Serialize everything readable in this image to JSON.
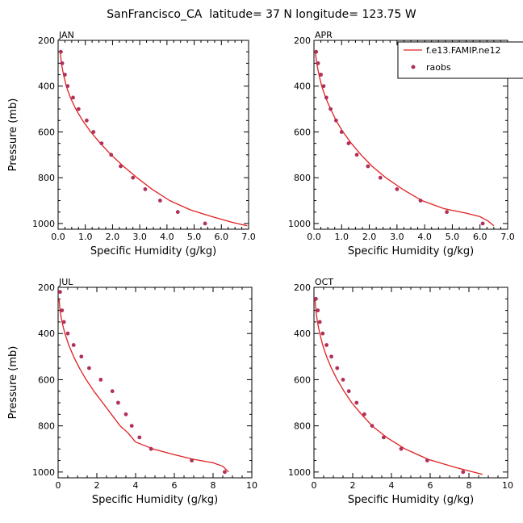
{
  "figure_title": "SanFrancisco_CA  latitude= 37 N longitude= 123.75 W",
  "legend": {
    "model_label": "f.e13.FAMIP.ne12",
    "obs_label": "raobs"
  },
  "colors": {
    "model": "#e02020",
    "obs": "#b0305a",
    "axes": "#000000"
  },
  "chart_data": [
    {
      "type": "line",
      "panel": "JAN",
      "xlabel": "Specific Humidity (g/kg)",
      "ylabel": "Pressure (mb)",
      "xlim": [
        0,
        7
      ],
      "xticks": [
        0.0,
        1.0,
        2.0,
        3.0,
        4.0,
        5.0,
        6.0,
        7.0
      ],
      "xtick_labels": [
        "0.0",
        "1.0",
        "2.0",
        "3.0",
        "4.0",
        "5.0",
        "6.0",
        "7.0"
      ],
      "ylim": [
        1025,
        200
      ],
      "yticks": [
        200,
        400,
        600,
        800,
        1000
      ],
      "series": [
        {
          "name": "f.e13.FAMIP.ne12",
          "style": "line",
          "x": [
            0.08,
            0.12,
            0.2,
            0.3,
            0.45,
            0.65,
            0.9,
            1.2,
            1.55,
            1.95,
            2.4,
            2.9,
            3.45,
            4.1,
            4.85,
            5.65,
            6.4,
            6.95
          ],
          "y": [
            250,
            300,
            350,
            400,
            450,
            500,
            550,
            600,
            650,
            700,
            750,
            800,
            850,
            900,
            940,
            970,
            995,
            1010
          ]
        },
        {
          "name": "raobs",
          "style": "markers",
          "x": [
            0.1,
            0.15,
            0.25,
            0.35,
            0.55,
            0.75,
            1.05,
            1.3,
            1.6,
            1.95,
            2.3,
            2.75,
            3.2,
            3.75,
            4.4,
            5.4
          ],
          "y": [
            250,
            300,
            350,
            400,
            450,
            500,
            550,
            600,
            650,
            700,
            750,
            800,
            850,
            900,
            950,
            1000
          ]
        }
      ]
    },
    {
      "type": "line",
      "panel": "APR",
      "xlabel": "Specific Humidity (g/kg)",
      "ylabel": "",
      "xlim": [
        0,
        7
      ],
      "xticks": [
        0.0,
        1.0,
        2.0,
        3.0,
        4.0,
        5.0,
        6.0,
        7.0
      ],
      "xtick_labels": [
        "0.0",
        "1.0",
        "2.0",
        "3.0",
        "4.0",
        "5.0",
        "6.0",
        "7.0"
      ],
      "ylim": [
        1025,
        200
      ],
      "yticks": [
        200,
        400,
        600,
        800,
        1000
      ],
      "series": [
        {
          "name": "f.e13.FAMIP.ne12",
          "style": "line",
          "x": [
            0.05,
            0.1,
            0.18,
            0.28,
            0.42,
            0.6,
            0.8,
            1.05,
            1.35,
            1.7,
            2.1,
            2.6,
            3.2,
            3.9,
            4.7,
            5.5,
            6.0,
            6.3,
            6.5
          ],
          "y": [
            250,
            300,
            350,
            400,
            450,
            500,
            550,
            600,
            650,
            700,
            750,
            800,
            850,
            900,
            935,
            955,
            970,
            990,
            1010
          ]
        },
        {
          "name": "raobs",
          "style": "markers",
          "x": [
            0.08,
            0.15,
            0.25,
            0.35,
            0.45,
            0.6,
            0.8,
            1.0,
            1.25,
            1.55,
            1.95,
            2.4,
            3.0,
            3.85,
            4.8,
            6.1
          ],
          "y": [
            250,
            300,
            350,
            400,
            450,
            500,
            550,
            600,
            650,
            700,
            750,
            800,
            850,
            900,
            950,
            1000
          ]
        }
      ]
    },
    {
      "type": "line",
      "panel": "JUL",
      "xlabel": "Specific Humidity (g/kg)",
      "ylabel": "Pressure (mb)",
      "xlim": [
        0,
        10
      ],
      "xticks": [
        0,
        2,
        4,
        6,
        8,
        10
      ],
      "xtick_labels": [
        "0",
        "2",
        "4",
        "6",
        "8",
        "10"
      ],
      "ylim": [
        1025,
        200
      ],
      "yticks": [
        200,
        400,
        600,
        800,
        1000
      ],
      "series": [
        {
          "name": "f.e13.FAMIP.ne12",
          "style": "line",
          "x": [
            0.05,
            0.1,
            0.2,
            0.35,
            0.55,
            0.8,
            1.1,
            1.45,
            1.85,
            2.3,
            2.75,
            3.2,
            3.6,
            4.0,
            4.9,
            6.0,
            7.0,
            8.0,
            8.5,
            8.8
          ],
          "y": [
            250,
            300,
            350,
            400,
            450,
            500,
            550,
            600,
            650,
            700,
            750,
            800,
            830,
            870,
            900,
            925,
            945,
            960,
            975,
            1000
          ]
        },
        {
          "name": "raobs",
          "style": "markers",
          "x": [
            0.1,
            0.2,
            0.3,
            0.5,
            0.8,
            1.2,
            1.6,
            2.2,
            2.8,
            3.1,
            3.5,
            3.8,
            4.2,
            4.8,
            6.9,
            8.6
          ],
          "y": [
            220,
            300,
            350,
            400,
            450,
            500,
            550,
            600,
            650,
            700,
            750,
            800,
            850,
            900,
            950,
            1000
          ]
        }
      ]
    },
    {
      "type": "line",
      "panel": "OCT",
      "xlabel": "Specific Humidity (g/kg)",
      "ylabel": "",
      "xlim": [
        0,
        10
      ],
      "xticks": [
        0,
        2,
        4,
        6,
        8,
        10
      ],
      "xtick_labels": [
        "0",
        "2",
        "4",
        "6",
        "8",
        "10"
      ],
      "ylim": [
        1025,
        200
      ],
      "yticks": [
        200,
        400,
        600,
        800,
        1000
      ],
      "series": [
        {
          "name": "f.e13.FAMIP.ne12",
          "style": "line",
          "x": [
            0.05,
            0.1,
            0.18,
            0.3,
            0.45,
            0.65,
            0.9,
            1.2,
            1.55,
            1.95,
            2.45,
            3.0,
            3.75,
            4.7,
            5.9,
            7.3,
            8.7
          ],
          "y": [
            250,
            300,
            350,
            400,
            450,
            500,
            550,
            600,
            650,
            700,
            750,
            800,
            850,
            900,
            945,
            980,
            1010
          ]
        },
        {
          "name": "raobs",
          "style": "markers",
          "x": [
            0.1,
            0.2,
            0.3,
            0.45,
            0.65,
            0.9,
            1.2,
            1.5,
            1.8,
            2.2,
            2.6,
            3.0,
            3.6,
            4.5,
            5.85,
            7.7
          ],
          "y": [
            250,
            300,
            350,
            400,
            450,
            500,
            550,
            600,
            650,
            700,
            750,
            800,
            850,
            900,
            950,
            1000
          ]
        }
      ]
    }
  ]
}
